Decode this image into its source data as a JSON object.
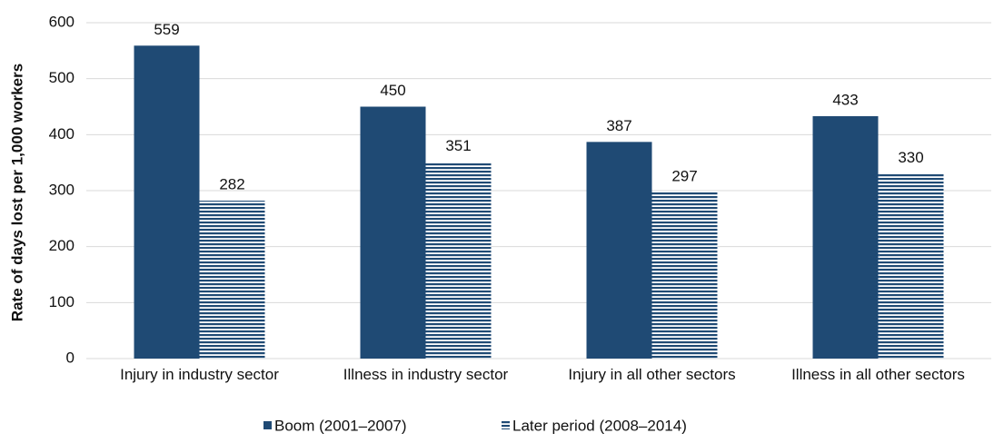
{
  "chart_data": {
    "type": "bar",
    "y_label": "Rate of days lost per 1,000 workers",
    "categories": [
      "Injury in industry sector",
      "Illness in industry sector",
      "Injury in all other sectors",
      "Illness in all other sectors"
    ],
    "series": [
      {
        "name": "Boom (2001–2007)",
        "color": "#1f4a74",
        "values": [
          559,
          450,
          387,
          433
        ]
      },
      {
        "name": "Later period (2008–2014)",
        "color": "#1f4a74",
        "pattern": "horizontal-stripes",
        "values": [
          282,
          351,
          297,
          330
        ]
      }
    ],
    "ylim": [
      0,
      600
    ],
    "yticks": [
      0,
      100,
      200,
      300,
      400,
      500,
      600
    ],
    "grid": true,
    "legend": "bottom"
  }
}
